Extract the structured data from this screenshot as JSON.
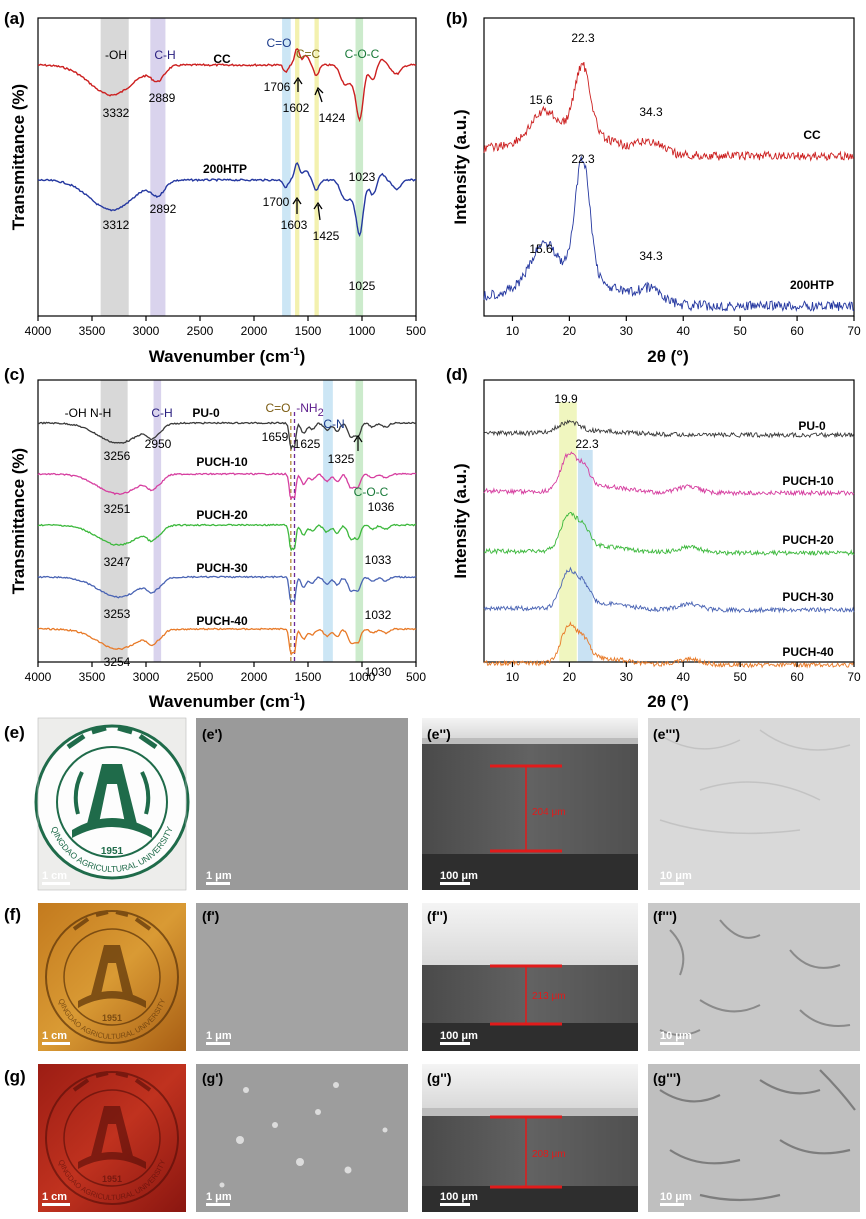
{
  "figure": {
    "panels": {
      "a": "(a)",
      "b": "(b)",
      "c": "(c)",
      "d": "(d)",
      "e": "(e)",
      "e1": "(e')",
      "e2": "(e'')",
      "e3": "(e''')",
      "f": "(f)",
      "f1": "(f')",
      "f2": "(f'')",
      "f3": "(f''')",
      "g": "(g)",
      "g1": "(g')",
      "g2": "(g'')",
      "g3": "(g''')"
    },
    "scale_bars": {
      "cm": "1 cm",
      "um1": "1 μm",
      "um100": "100 μm",
      "um10": "10 μm"
    },
    "thickness": {
      "e": "204 μm",
      "f": "213 μm",
      "g": "208 μm"
    },
    "logo": {
      "text": "QINGDAO AGRICULTURAL UNIVERSITY",
      "year": "1951"
    }
  },
  "chart_data": [
    {
      "id": "a",
      "type": "line",
      "xlabel": "Wavenumber (cm",
      "xlabel_sup": "-1",
      "xlabel_end": ")",
      "ylabel": "Transmittance (%)",
      "xlim": [
        4000,
        500
      ],
      "xticks": [
        "4000",
        "3500",
        "3000",
        "2500",
        "2000",
        "1500",
        "1000",
        "500"
      ],
      "bands": [
        {
          "label": "-OH",
          "color": "#c8c8c8"
        },
        {
          "label": "C-H",
          "color": "#c9c0e6"
        },
        {
          "label": "C=O",
          "color": "#bfe0f2"
        },
        {
          "label": "C=C",
          "color": "#f2f0a6"
        },
        {
          "label": "C-O-C",
          "color": "#bfe6bf"
        }
      ],
      "series": [
        {
          "name": "CC",
          "color": "#cc2020",
          "peaks": [
            "3332",
            "2889",
            "1706",
            "1602",
            "1424",
            "1023"
          ]
        },
        {
          "name": "200HTP",
          "color": "#2538a0",
          "peaks": [
            "3312",
            "2892",
            "1700",
            "1603",
            "1425",
            "1025"
          ]
        }
      ]
    },
    {
      "id": "b",
      "type": "line",
      "xlabel": "2θ (°)",
      "ylabel": "Intensity (a.u.)",
      "xlim": [
        5,
        70
      ],
      "xticks": [
        "10",
        "20",
        "30",
        "40",
        "50",
        "60",
        "70"
      ],
      "series": [
        {
          "name": "CC",
          "color": "#cc2020",
          "peaks": [
            "15.6",
            "22.3",
            "34.3"
          ]
        },
        {
          "name": "200HTP",
          "color": "#2538a0",
          "peaks": [
            "15.6",
            "22.3",
            "34.3"
          ]
        }
      ]
    },
    {
      "id": "c",
      "type": "line",
      "xlabel": "Wavenumber (cm",
      "xlabel_sup": "-1",
      "xlabel_end": ")",
      "ylabel": "Transmittance (%)",
      "xlim": [
        4000,
        500
      ],
      "xticks": [
        "4000",
        "3500",
        "3000",
        "2500",
        "2000",
        "1500",
        "1000",
        "500"
      ],
      "bands": [
        {
          "label": "-OH N-H",
          "color": "#c8c8c8"
        },
        {
          "label": "C-H",
          "color": "#c9c0e6"
        },
        {
          "label": "C=O",
          "color": "#b08a3a"
        },
        {
          "label": "-NH",
          "label_sub": "2",
          "color": "#6a2a9a"
        },
        {
          "label": "C-N",
          "color": "#bfe0f2"
        },
        {
          "label": "C-O-C",
          "color": "#bfe6bf"
        }
      ],
      "series": [
        {
          "name": "PU-0",
          "color": "#3a3a3a",
          "peaks": [
            "3256",
            "2950",
            "1659",
            "1625",
            "1325"
          ]
        },
        {
          "name": "PUCH-10",
          "color": "#d63fa0",
          "peaks": [
            "3251",
            "1036"
          ]
        },
        {
          "name": "PUCH-20",
          "color": "#3cb83c",
          "peaks": [
            "3247",
            "1033"
          ]
        },
        {
          "name": "PUCH-30",
          "color": "#4a64b4",
          "peaks": [
            "3253",
            "1032"
          ]
        },
        {
          "name": "PUCH-40",
          "color": "#e87a28",
          "peaks": [
            "3254",
            "1030"
          ]
        }
      ]
    },
    {
      "id": "d",
      "type": "line",
      "xlabel": "2θ (°)",
      "ylabel": "Intensity (a.u.)",
      "xlim": [
        5,
        70
      ],
      "xticks": [
        "10",
        "20",
        "30",
        "40",
        "50",
        "60",
        "70"
      ],
      "peaks": [
        "19.9",
        "22.3"
      ],
      "series": [
        {
          "name": "PU-0",
          "color": "#3a3a3a"
        },
        {
          "name": "PUCH-10",
          "color": "#d63fa0"
        },
        {
          "name": "PUCH-20",
          "color": "#3cb83c"
        },
        {
          "name": "PUCH-30",
          "color": "#4a64b4"
        },
        {
          "name": "PUCH-40",
          "color": "#e87a28"
        }
      ]
    }
  ]
}
